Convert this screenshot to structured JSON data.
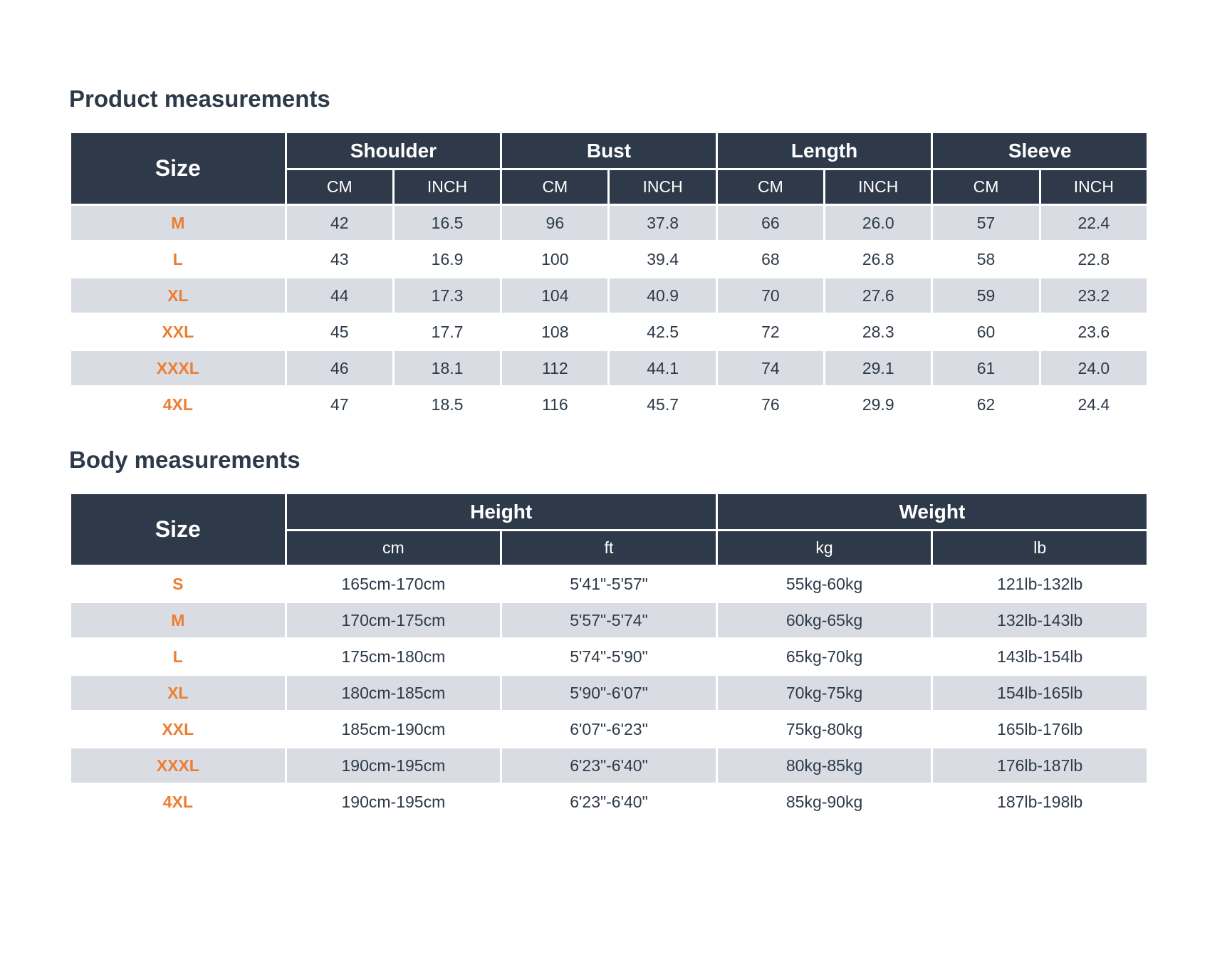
{
  "colors": {
    "header_bg": "#2e3a49",
    "accent_orange": "#ed7d31",
    "row_alt_bg": "#d9dde3",
    "row_bg": "#ffffff",
    "text_dark": "#2e3a49"
  },
  "product_table": {
    "title": "Product measurements",
    "size_header": "Size",
    "groups": [
      {
        "label": "Shoulder"
      },
      {
        "label": "Bust"
      },
      {
        "label": "Length"
      },
      {
        "label": "Sleeve"
      }
    ],
    "sub": [
      "CM",
      "INCH"
    ],
    "rows": [
      {
        "size": "M",
        "values": [
          "42",
          "16.5",
          "96",
          "37.8",
          "66",
          "26.0",
          "57",
          "22.4"
        ]
      },
      {
        "size": "L",
        "values": [
          "43",
          "16.9",
          "100",
          "39.4",
          "68",
          "26.8",
          "58",
          "22.8"
        ]
      },
      {
        "size": "XL",
        "values": [
          "44",
          "17.3",
          "104",
          "40.9",
          "70",
          "27.6",
          "59",
          "23.2"
        ]
      },
      {
        "size": "XXL",
        "values": [
          "45",
          "17.7",
          "108",
          "42.5",
          "72",
          "28.3",
          "60",
          "23.6"
        ]
      },
      {
        "size": "XXXL",
        "values": [
          "46",
          "18.1",
          "112",
          "44.1",
          "74",
          "29.1",
          "61",
          "24.0"
        ]
      },
      {
        "size": "4XL",
        "values": [
          "47",
          "18.5",
          "116",
          "45.7",
          "76",
          "29.9",
          "62",
          "24.4"
        ]
      }
    ]
  },
  "body_table": {
    "title": "Body measurements",
    "size_header": "Size",
    "groups": [
      {
        "label": "Height",
        "subs": [
          "cm",
          "ft"
        ]
      },
      {
        "label": "Weight",
        "subs": [
          "kg",
          "lb"
        ]
      }
    ],
    "rows": [
      {
        "size": "S",
        "values": [
          "165cm-170cm",
          "5'41\"-5'57\"",
          "55kg-60kg",
          "121lb-132lb"
        ]
      },
      {
        "size": "M",
        "values": [
          "170cm-175cm",
          "5'57\"-5'74\"",
          "60kg-65kg",
          "132lb-143lb"
        ]
      },
      {
        "size": "L",
        "values": [
          "175cm-180cm",
          "5'74\"-5'90\"",
          "65kg-70kg",
          "143lb-154lb"
        ]
      },
      {
        "size": "XL",
        "values": [
          "180cm-185cm",
          "5'90\"-6'07\"",
          "70kg-75kg",
          "154lb-165lb"
        ]
      },
      {
        "size": "XXL",
        "values": [
          "185cm-190cm",
          "6'07\"-6'23\"",
          "75kg-80kg",
          "165lb-176lb"
        ]
      },
      {
        "size": "XXXL",
        "values": [
          "190cm-195cm",
          "6'23\"-6'40\"",
          "80kg-85kg",
          "176lb-187lb"
        ]
      },
      {
        "size": "4XL",
        "values": [
          "190cm-195cm",
          "6'23\"-6'40\"",
          "85kg-90kg",
          "187lb-198lb"
        ]
      }
    ]
  }
}
